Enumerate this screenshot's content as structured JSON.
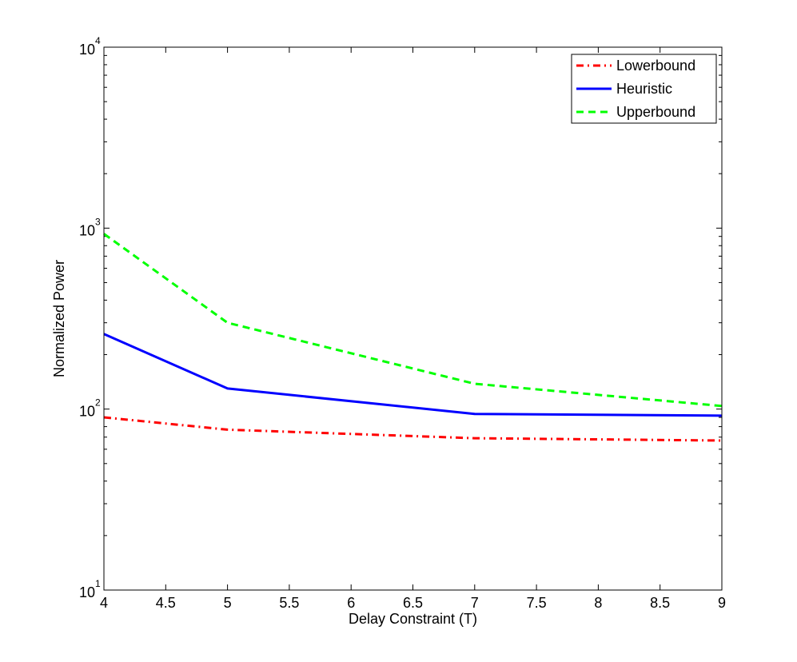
{
  "chart_data": {
    "type": "line",
    "title": "",
    "xlabel": "Delay Constraint (T)",
    "ylabel": "Normalized Power",
    "xlim": [
      4,
      9
    ],
    "ylim": [
      10,
      10000
    ],
    "yscale": "log",
    "x_ticks": [
      4,
      4.5,
      5,
      5.5,
      6,
      6.5,
      7,
      7.5,
      8,
      8.5,
      9
    ],
    "x_tick_labels": [
      "4",
      "4.5",
      "5",
      "5.5",
      "6",
      "6.5",
      "7",
      "7.5",
      "8",
      "8.5",
      "9"
    ],
    "y_ticks": [
      10,
      100,
      1000,
      10000
    ],
    "y_tick_labels": [
      {
        "base": "10",
        "exp": "1"
      },
      {
        "base": "10",
        "exp": "2"
      },
      {
        "base": "10",
        "exp": "3"
      },
      {
        "base": "10",
        "exp": "4"
      }
    ],
    "grid": false,
    "legend_position": "top-right",
    "x": [
      4,
      5,
      7,
      9
    ],
    "series": [
      {
        "name": "Lowerbound",
        "values": [
          90,
          77,
          69,
          67
        ],
        "color": "#ff0000",
        "style": "dashdot"
      },
      {
        "name": "Heuristic",
        "values": [
          260,
          130,
          94,
          92
        ],
        "color": "#0000ff",
        "style": "solid"
      },
      {
        "name": "Upperbound",
        "values": [
          930,
          300,
          138,
          104
        ],
        "color": "#00ff00",
        "style": "dashed"
      }
    ]
  }
}
